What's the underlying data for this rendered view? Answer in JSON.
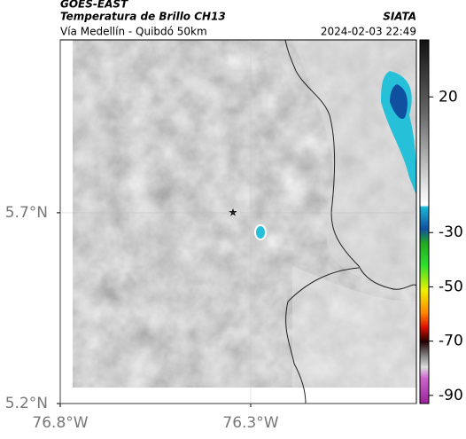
{
  "header": {
    "product": "GOES-EAST",
    "title": "Temperatura de Brillo CH13",
    "source": "SIATA",
    "subtitle": "Vía Medellín - Quibdó 50km",
    "datetime": "2024-02-03 22:49"
  },
  "map": {
    "xlim": [
      -76.8,
      -75.865
    ],
    "ylim": [
      5.2,
      6.153
    ],
    "xticks": [
      {
        "value": -76.8,
        "label": "76.8°W"
      },
      {
        "value": -76.3,
        "label": "76.3°W"
      }
    ],
    "yticks": [
      {
        "value": 5.2,
        "label": "5.2°N"
      },
      {
        "value": 5.7,
        "label": "5.7°N"
      }
    ],
    "grid": true
  },
  "colorbar": {
    "lim": [
      -93,
      41
    ],
    "ticks": [
      20,
      -30,
      -50,
      -70,
      -90
    ]
  }
}
